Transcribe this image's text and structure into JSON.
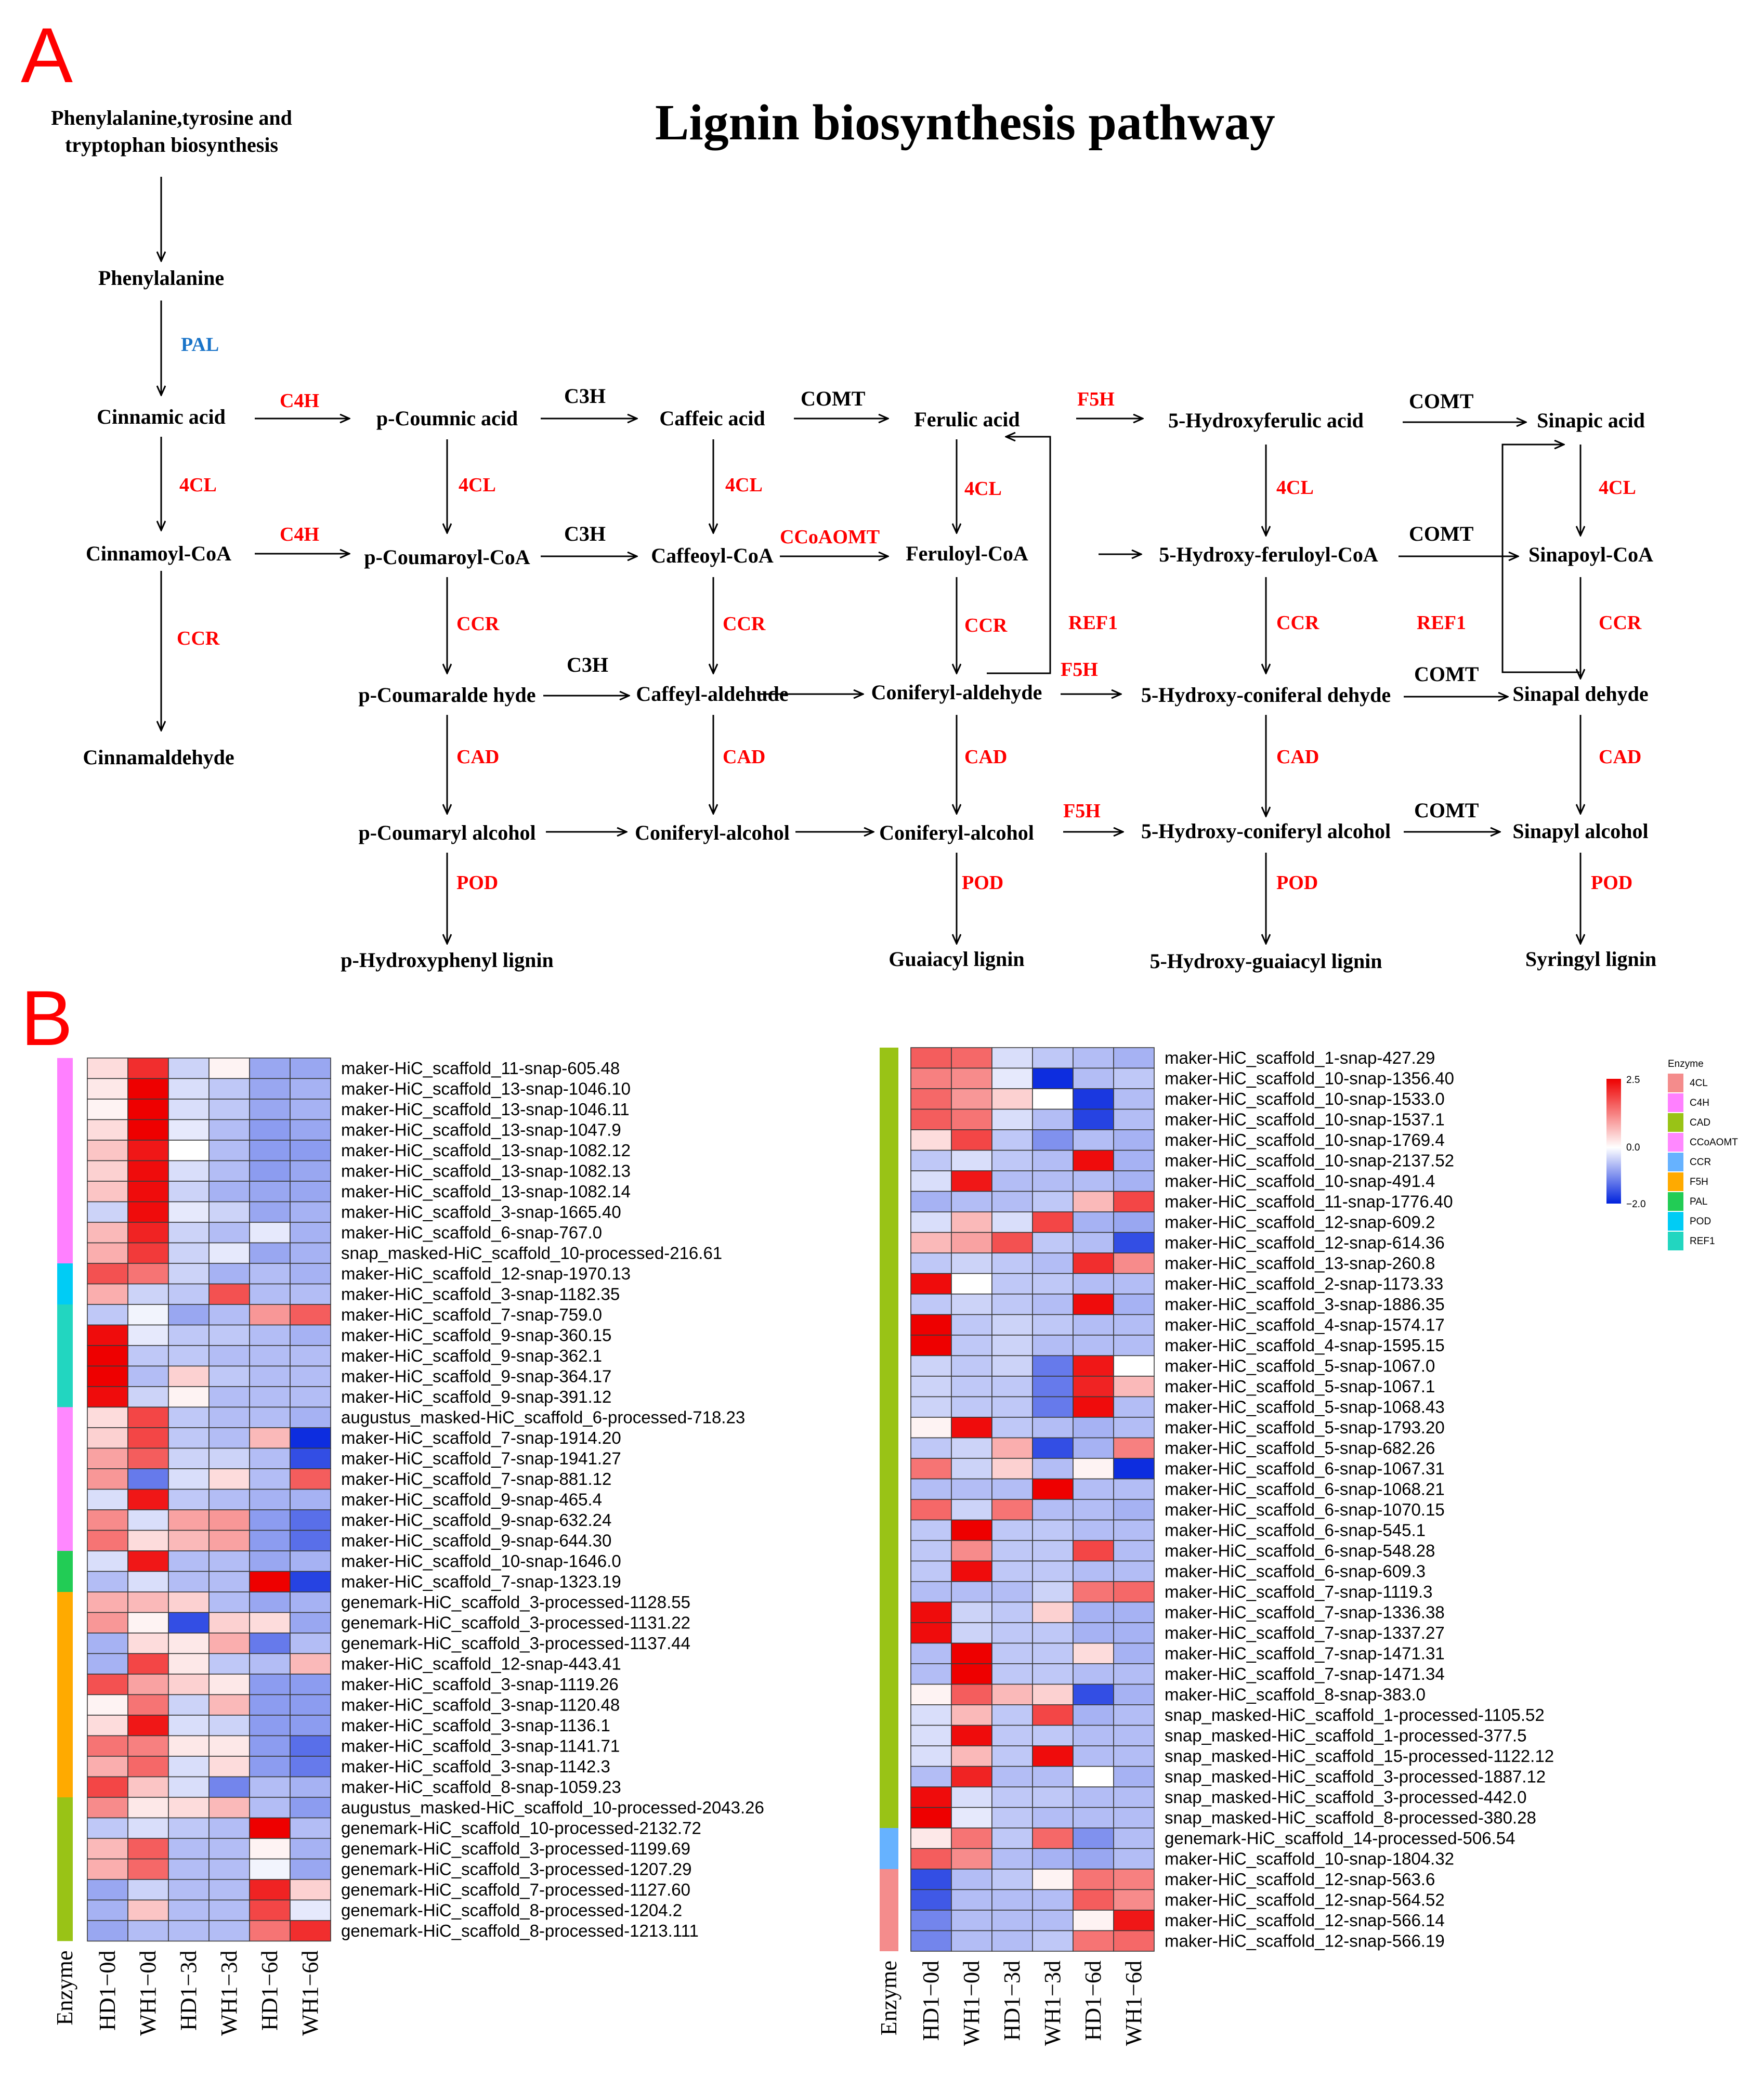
{
  "panel_a": {
    "label": "A",
    "title": "Lignin biosynthesis pathway",
    "nodes": {
      "precursor_1": "Phenylalanine,tyrosine and",
      "precursor_2": "tryptophan biosynthesis",
      "phenylalanine": "Phenylalanine",
      "cinnamic": "Cinnamic acid",
      "pcoumnic": "p-Coumnic acid",
      "caffeic": "Caffeic acid",
      "ferulic": "Ferulic acid",
      "hferulic": "5-Hydroxyferulic acid",
      "sinapic": "Sinapic acid",
      "cinnamoylcoa": "Cinnamoyl-CoA",
      "pcoumaroylcoa": "p-Coumaroyl-CoA",
      "caffeoylcoa": "Caffeoyl-CoA",
      "feruloylcoa": "Feruloyl-CoA",
      "hferuloylcoa": "5-Hydroxy-feruloyl-CoA",
      "sinapoylcoa": "Sinapoyl-CoA",
      "cinnamaldehyde": "Cinnamaldehyde",
      "pcoumaraldehyde": "p-Coumaralde hyde",
      "caffeylaldehyde": "Caffeyl-aldehude",
      "coniferylaldehyde": "Coniferyl-aldehyde",
      "hconiferaldehyde": "5-Hydroxy-coniferal dehyde",
      "sinapaldehyde": "Sinapal dehyde",
      "pcoumarylalcohol": "p-Coumaryl alcohol",
      "coniferylalcohol1": "Coniferyl-alcohol",
      "coniferylalcohol2": "Coniferyl-alcohol",
      "hconiferylalcohol": "5-Hydroxy-coniferyl alcohol",
      "sinapylalcohol": "Sinapyl alcohol",
      "hlignin": "p-Hydroxyphenyl lignin",
      "glignin": "Guaiacyl lignin",
      "hglignin": "5-Hydroxy-guaiacyl lignin",
      "slignin": "Syringyl lignin"
    },
    "enzymes": {
      "pal": "PAL",
      "c4h_1": "C4H",
      "c4h_2": "C4H",
      "c3h_1": "C3H",
      "c3h_2": "C3H",
      "c3h_3": "C3H",
      "comt_1": "COMT",
      "comt_2": "COMT",
      "comt_3": "COMT",
      "comt_4": "COMT",
      "f5h_1": "F5H",
      "f5h_2": "F5H",
      "f5h_3": "F5H",
      "fcl_1": "4CL",
      "fcl_2": "4CL",
      "fcl_3": "4CL",
      "fcl_4": "4CL",
      "fcl_5": "4CL",
      "fcl_6": "4CL",
      "ccr_1": "CCR",
      "ccr_2": "CCR",
      "ccr_3": "CCR",
      "ccr_4": "CCR",
      "ccr_5": "CCR",
      "ccr_6": "CCR",
      "ccoaomt": "CCoAOMT",
      "ref1_1": "REF1",
      "ref1_2": "REF1",
      "cad_1": "CAD",
      "cad_2": "CAD",
      "cad_3": "CAD",
      "cad_4": "CAD",
      "cad_5": "CAD",
      "pod_1": "POD",
      "pod_2": "POD",
      "pod_3": "POD",
      "pod_4": "POD"
    }
  },
  "panel_b": {
    "label": "B",
    "columns": [
      "HD1−0d",
      "WH1−0d",
      "HD1−3d",
      "WH1−3d",
      "HD1−6d",
      "WH1−6d"
    ],
    "enzyme_axis_label": "Enzyme",
    "legend": {
      "title": "Enzyme",
      "scale_max": "2.5",
      "scale_mid": "0.0",
      "scale_min": "−2.0",
      "colors": {
        "high": "#ee0000",
        "mid": "#ffffff",
        "low": "#0022dd"
      },
      "items": [
        {
          "name": "4CL",
          "color": "#f48c8c"
        },
        {
          "name": "C4H",
          "color": "#ff80ff"
        },
        {
          "name": "CAD",
          "color": "#99c316"
        },
        {
          "name": "CCoAOMT",
          "color": "#ff88ff"
        },
        {
          "name": "CCR",
          "color": "#66b2ff"
        },
        {
          "name": "F5H",
          "color": "#ffaa00"
        },
        {
          "name": "PAL",
          "color": "#22cc55"
        },
        {
          "name": "POD",
          "color": "#00ccf5"
        },
        {
          "name": "REF1",
          "color": "#22d6c0"
        }
      ]
    },
    "heatmap_left": {
      "genes": [
        "maker-HiC_scaffold_11-snap-605.48",
        "maker-HiC_scaffold_13-snap-1046.10",
        "maker-HiC_scaffold_13-snap-1046.11",
        "maker-HiC_scaffold_13-snap-1047.9",
        "maker-HiC_scaffold_13-snap-1082.12",
        "maker-HiC_scaffold_13-snap-1082.13",
        "maker-HiC_scaffold_13-snap-1082.14",
        "maker-HiC_scaffold_3-snap-1665.40",
        "maker-HiC_scaffold_6-snap-767.0",
        "snap_masked-HiC_scaffold_10-processed-216.61",
        "maker-HiC_scaffold_12-snap-1970.13",
        "maker-HiC_scaffold_3-snap-1182.35",
        "maker-HiC_scaffold_7-snap-759.0",
        "maker-HiC_scaffold_9-snap-360.15",
        "maker-HiC_scaffold_9-snap-362.1",
        "maker-HiC_scaffold_9-snap-364.17",
        "maker-HiC_scaffold_9-snap-391.12",
        "augustus_masked-HiC_scaffold_6-processed-718.23",
        "maker-HiC_scaffold_7-snap-1914.20",
        "maker-HiC_scaffold_7-snap-1941.27",
        "maker-HiC_scaffold_7-snap-881.12",
        "maker-HiC_scaffold_9-snap-465.4",
        "maker-HiC_scaffold_9-snap-632.24",
        "maker-HiC_scaffold_9-snap-644.30",
        "maker-HiC_scaffold_10-snap-1646.0",
        "maker-HiC_scaffold_7-snap-1323.19",
        "genemark-HiC_scaffold_3-processed-1128.55",
        "genemark-HiC_scaffold_3-processed-1131.22",
        "genemark-HiC_scaffold_3-processed-1137.44",
        "maker-HiC_scaffold_12-snap-443.41",
        "maker-HiC_scaffold_3-snap-1119.26",
        "maker-HiC_scaffold_3-snap-1120.48",
        "maker-HiC_scaffold_3-snap-1136.1",
        "maker-HiC_scaffold_3-snap-1141.71",
        "maker-HiC_scaffold_3-snap-1142.3",
        "maker-HiC_scaffold_8-snap-1059.23",
        "augustus_masked-HiC_scaffold_10-processed-2043.26",
        "genemark-HiC_scaffold_10-processed-2132.72",
        "genemark-HiC_scaffold_3-processed-1199.69",
        "genemark-HiC_scaffold_3-processed-1207.29",
        "genemark-HiC_scaffold_7-processed-1127.60",
        "genemark-HiC_scaffold_8-processed-1204.2",
        "genemark-HiC_scaffold_8-processed-1213.111"
      ],
      "enzyme_groups": [
        {
          "enzyme": "C4H",
          "count": 10
        },
        {
          "enzyme": "POD",
          "count": 2
        },
        {
          "enzyme": "REF1",
          "count": 5
        },
        {
          "enzyme": "CCoAOMT",
          "count": 7
        },
        {
          "enzyme": "PAL",
          "count": 2
        },
        {
          "enzyme": "F5H",
          "count": 10
        },
        {
          "enzyme": "CAD",
          "count": 7
        }
      ],
      "values": [
        [
          0.3,
          1.8,
          -0.4,
          0.1,
          -0.8,
          -0.8
        ],
        [
          0.2,
          2.2,
          -0.3,
          -0.5,
          -0.8,
          -0.7
        ],
        [
          0.1,
          2.2,
          -0.3,
          -0.5,
          -0.8,
          -0.7
        ],
        [
          0.3,
          2.2,
          -0.2,
          -0.6,
          -0.9,
          -0.8
        ],
        [
          0.5,
          2.0,
          0.0,
          -0.6,
          -0.9,
          -0.9
        ],
        [
          0.4,
          2.1,
          -0.3,
          -0.6,
          -0.9,
          -0.8
        ],
        [
          0.5,
          2.1,
          -0.4,
          -0.7,
          -0.8,
          -0.8
        ],
        [
          -0.4,
          2.1,
          -0.2,
          -0.4,
          -0.8,
          -0.7
        ],
        [
          0.6,
          1.9,
          -0.4,
          -0.6,
          -0.2,
          -0.7
        ],
        [
          0.7,
          1.7,
          -0.4,
          -0.2,
          -0.8,
          -0.7
        ],
        [
          1.5,
          1.2,
          -0.4,
          -0.7,
          -0.6,
          -0.7
        ],
        [
          0.7,
          -0.4,
          -0.5,
          1.5,
          -0.6,
          -0.6
        ],
        [
          -0.5,
          -0.1,
          -0.8,
          -0.6,
          0.9,
          1.4
        ],
        [
          2.1,
          -0.2,
          -0.5,
          -0.5,
          -0.6,
          -0.7
        ],
        [
          2.2,
          -0.5,
          -0.5,
          -0.6,
          -0.6,
          -0.6
        ],
        [
          2.2,
          -0.6,
          0.4,
          -0.5,
          -0.6,
          -0.6
        ],
        [
          2.1,
          -0.4,
          0.1,
          -0.6,
          -0.6,
          -0.6
        ],
        [
          0.3,
          1.6,
          -0.5,
          -0.6,
          -0.6,
          -0.7
        ],
        [
          0.4,
          1.6,
          -0.5,
          -0.6,
          0.6,
          -1.9
        ],
        [
          0.8,
          1.4,
          -0.4,
          -0.4,
          -0.6,
          -1.6
        ],
        [
          0.9,
          -1.2,
          -0.3,
          0.3,
          -0.6,
          1.4
        ],
        [
          -0.3,
          2.0,
          -0.5,
          -0.6,
          -0.7,
          -0.7
        ],
        [
          1.0,
          -0.3,
          0.8,
          0.9,
          -0.9,
          -1.3
        ],
        [
          1.2,
          0.3,
          0.6,
          0.8,
          -0.9,
          -1.3
        ],
        [
          -0.3,
          2.0,
          -0.6,
          -0.6,
          -0.8,
          -0.7
        ],
        [
          -0.6,
          -0.3,
          -0.6,
          -0.6,
          2.4,
          -1.7
        ],
        [
          0.7,
          0.6,
          0.4,
          -0.6,
          -0.8,
          -0.7
        ],
        [
          0.9,
          0.1,
          -1.6,
          0.4,
          0.3,
          -0.8
        ],
        [
          -0.7,
          0.3,
          0.2,
          0.7,
          -1.2,
          -0.6
        ],
        [
          -0.7,
          1.6,
          0.2,
          -0.5,
          -0.6,
          0.6
        ],
        [
          1.5,
          0.8,
          0.4,
          0.2,
          -0.9,
          -0.9
        ],
        [
          0.1,
          1.2,
          -0.4,
          0.6,
          -0.9,
          -0.9
        ],
        [
          0.3,
          2.0,
          -0.3,
          -0.4,
          -0.9,
          -0.9
        ],
        [
          1.2,
          1.1,
          0.2,
          0.2,
          -0.9,
          -1.3
        ],
        [
          0.7,
          1.3,
          -0.3,
          0.3,
          -0.9,
          -1.2
        ],
        [
          1.6,
          0.5,
          -0.3,
          -1.1,
          -0.6,
          -0.7
        ],
        [
          1.0,
          0.2,
          0.3,
          0.6,
          -0.6,
          -0.9
        ],
        [
          -0.5,
          -0.3,
          -0.5,
          -0.6,
          2.3,
          -0.6
        ],
        [
          0.6,
          1.4,
          -0.6,
          -0.6,
          0.1,
          -0.7
        ],
        [
          0.7,
          1.3,
          -0.6,
          -0.6,
          -0.1,
          -0.8
        ],
        [
          -0.8,
          -0.4,
          -0.6,
          -0.6,
          1.9,
          0.4
        ],
        [
          -0.7,
          0.5,
          -0.6,
          -0.6,
          1.6,
          -0.2
        ],
        [
          -0.8,
          -0.6,
          -0.6,
          -0.6,
          1.2,
          1.8
        ]
      ]
    },
    "heatmap_right": {
      "genes": [
        "maker-HiC_scaffold_1-snap-427.29",
        "maker-HiC_scaffold_10-snap-1356.40",
        "maker-HiC_scaffold_10-snap-1533.0",
        "maker-HiC_scaffold_10-snap-1537.1",
        "maker-HiC_scaffold_10-snap-1769.4",
        "maker-HiC_scaffold_10-snap-2137.52",
        "maker-HiC_scaffold_10-snap-491.4",
        "maker-HiC_scaffold_11-snap-1776.40",
        "maker-HiC_scaffold_12-snap-609.2",
        "maker-HiC_scaffold_12-snap-614.36",
        "maker-HiC_scaffold_13-snap-260.8",
        "maker-HiC_scaffold_2-snap-1173.33",
        "maker-HiC_scaffold_3-snap-1886.35",
        "maker-HiC_scaffold_4-snap-1574.17",
        "maker-HiC_scaffold_4-snap-1595.15",
        "maker-HiC_scaffold_5-snap-1067.0",
        "maker-HiC_scaffold_5-snap-1067.1",
        "maker-HiC_scaffold_5-snap-1068.43",
        "maker-HiC_scaffold_5-snap-1793.20",
        "maker-HiC_scaffold_5-snap-682.26",
        "maker-HiC_scaffold_6-snap-1067.31",
        "maker-HiC_scaffold_6-snap-1068.21",
        "maker-HiC_scaffold_6-snap-1070.15",
        "maker-HiC_scaffold_6-snap-545.1",
        "maker-HiC_scaffold_6-snap-548.28",
        "maker-HiC_scaffold_6-snap-609.3",
        "maker-HiC_scaffold_7-snap-1119.3",
        "maker-HiC_scaffold_7-snap-1336.38",
        "maker-HiC_scaffold_7-snap-1337.27",
        "maker-HiC_scaffold_7-snap-1471.31",
        "maker-HiC_scaffold_7-snap-1471.34",
        "maker-HiC_scaffold_8-snap-383.0",
        "snap_masked-HiC_scaffold_1-processed-1105.52",
        "snap_masked-HiC_scaffold_1-processed-377.5",
        "snap_masked-HiC_scaffold_15-processed-1122.12",
        "snap_masked-HiC_scaffold_3-processed-1887.12",
        "snap_masked-HiC_scaffold_3-processed-442.0",
        "snap_masked-HiC_scaffold_8-processed-380.28",
        "genemark-HiC_scaffold_14-processed-506.54",
        "maker-HiC_scaffold_10-snap-1804.32",
        "maker-HiC_scaffold_12-snap-563.6",
        "maker-HiC_scaffold_12-snap-564.52",
        "maker-HiC_scaffold_12-snap-566.14",
        "maker-HiC_scaffold_12-snap-566.19"
      ],
      "enzyme_groups": [
        {
          "enzyme": "CAD",
          "count": 38
        },
        {
          "enzyme": "CCR",
          "count": 2
        },
        {
          "enzyme": "4CL",
          "count": 4
        }
      ],
      "values": [
        [
          1.4,
          1.3,
          -0.3,
          -0.5,
          -0.6,
          -0.7
        ],
        [
          1.1,
          1.0,
          -0.2,
          -1.9,
          -0.6,
          -0.5
        ],
        [
          1.3,
          0.9,
          0.4,
          0.0,
          -1.8,
          -0.6
        ],
        [
          1.4,
          1.2,
          -0.3,
          -0.6,
          -1.7,
          -0.6
        ],
        [
          0.3,
          1.6,
          -0.5,
          -1.0,
          -0.6,
          -0.7
        ],
        [
          -0.5,
          -0.3,
          -0.5,
          -0.6,
          2.1,
          -0.7
        ],
        [
          -0.3,
          2.0,
          -0.6,
          -0.6,
          -0.6,
          -0.7
        ],
        [
          -0.7,
          -0.6,
          -0.6,
          -0.5,
          0.6,
          1.6
        ],
        [
          -0.3,
          0.6,
          -0.3,
          1.6,
          -0.7,
          -0.8
        ],
        [
          0.6,
          0.8,
          1.5,
          -0.5,
          -0.6,
          -1.6
        ],
        [
          -0.5,
          -0.4,
          -0.5,
          -0.6,
          1.8,
          1.0
        ],
        [
          2.1,
          0.0,
          -0.5,
          -0.5,
          -0.6,
          -0.6
        ],
        [
          -0.5,
          -0.4,
          -0.5,
          -0.6,
          2.1,
          -0.7
        ],
        [
          2.2,
          -0.5,
          -0.4,
          -0.5,
          -0.6,
          -0.6
        ],
        [
          2.2,
          -0.5,
          -0.4,
          -0.6,
          -0.6,
          -0.6
        ],
        [
          -0.4,
          -0.5,
          -0.4,
          -1.2,
          2.0,
          0.0
        ],
        [
          -0.4,
          -0.5,
          -0.5,
          -1.2,
          1.9,
          0.6
        ],
        [
          -0.4,
          -0.5,
          -0.5,
          -1.2,
          2.1,
          -0.6
        ],
        [
          0.1,
          2.1,
          -0.5,
          -0.6,
          -0.7,
          -0.6
        ],
        [
          -0.5,
          -0.4,
          0.7,
          -1.6,
          -0.7,
          1.1
        ],
        [
          1.2,
          -0.4,
          0.4,
          -0.6,
          0.1,
          -1.9
        ],
        [
          -0.6,
          -0.6,
          -0.6,
          2.2,
          -0.6,
          -0.6
        ],
        [
          1.3,
          -0.4,
          1.2,
          -0.6,
          -0.6,
          -0.7
        ],
        [
          -0.5,
          2.2,
          -0.5,
          -0.5,
          -0.6,
          -0.6
        ],
        [
          -0.5,
          1.0,
          -0.5,
          -0.5,
          1.6,
          -0.6
        ],
        [
          -0.5,
          2.1,
          -0.5,
          -0.5,
          -0.6,
          -0.6
        ],
        [
          -0.6,
          -0.6,
          -0.6,
          -0.4,
          1.2,
          1.3
        ],
        [
          2.1,
          -0.4,
          -0.5,
          0.4,
          -0.7,
          -0.7
        ],
        [
          2.1,
          -0.4,
          -0.5,
          -0.5,
          -0.7,
          -0.7
        ],
        [
          -0.6,
          2.2,
          -0.5,
          -0.5,
          0.3,
          -0.7
        ],
        [
          -0.6,
          2.2,
          -0.5,
          -0.5,
          -0.6,
          -0.6
        ],
        [
          0.1,
          1.4,
          0.6,
          0.4,
          -1.6,
          -0.7
        ],
        [
          -0.3,
          0.6,
          -0.5,
          1.6,
          -0.7,
          -0.6
        ],
        [
          -0.3,
          2.1,
          -0.5,
          -0.5,
          -0.6,
          -0.6
        ],
        [
          -0.3,
          0.6,
          -0.5,
          2.1,
          -0.6,
          -0.6
        ],
        [
          -0.6,
          1.9,
          -0.6,
          -0.6,
          0.0,
          -0.7
        ],
        [
          2.1,
          -0.3,
          -0.5,
          -0.5,
          -0.6,
          -0.6
        ],
        [
          2.2,
          -0.2,
          -0.5,
          -0.6,
          -0.6,
          -0.6
        ],
        [
          0.2,
          1.2,
          -0.5,
          1.3,
          -1.0,
          -0.6
        ],
        [
          1.4,
          1.0,
          -0.6,
          -0.7,
          -0.8,
          -0.6
        ],
        [
          -1.6,
          -0.6,
          -0.5,
          0.1,
          1.2,
          1.1
        ],
        [
          -1.5,
          -0.6,
          -0.6,
          -0.6,
          1.4,
          1.0
        ],
        [
          -1.1,
          -0.6,
          -0.6,
          -0.6,
          0.1,
          2.0
        ],
        [
          -1.1,
          -0.6,
          -0.6,
          -0.5,
          1.2,
          1.3
        ]
      ]
    }
  }
}
